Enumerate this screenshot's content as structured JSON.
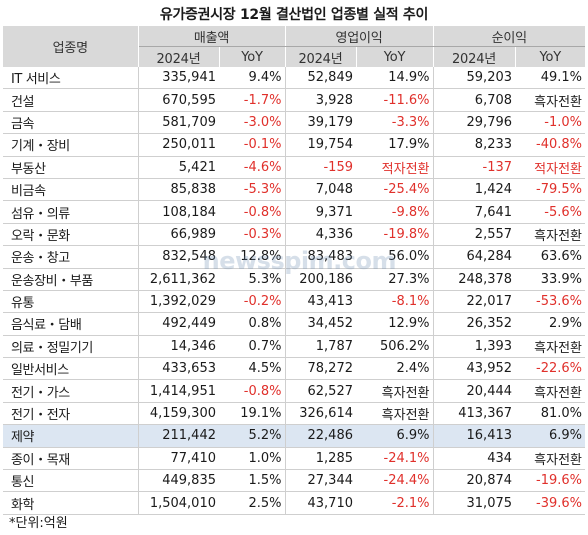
{
  "title": "유가증권시장 12월 결산법인 업종별 실적 추이",
  "header": {
    "sector_label": "업종명",
    "groups": [
      "매출액",
      "영업이익",
      "순이익"
    ],
    "year_label": "2024년",
    "yoy_label": "YoY"
  },
  "rows": [
    {
      "name": "IT 서비스",
      "rev": "335,941",
      "rev_yoy": "9.4%",
      "op": "52,849",
      "op_yoy": "14.9%",
      "net": "59,203",
      "net_yoy": "49.1%"
    },
    {
      "name": "건설",
      "rev": "670,595",
      "rev_yoy": "-1.7%",
      "op": "3,928",
      "op_yoy": "-11.6%",
      "net": "6,708",
      "net_yoy": "흑자전환"
    },
    {
      "name": "금속",
      "rev": "581,709",
      "rev_yoy": "-3.0%",
      "op": "39,179",
      "op_yoy": "-3.3%",
      "net": "29,796",
      "net_yoy": "-1.0%"
    },
    {
      "name": "기계・장비",
      "rev": "250,011",
      "rev_yoy": "-0.1%",
      "op": "19,754",
      "op_yoy": "17.9%",
      "net": "8,233",
      "net_yoy": "-40.8%"
    },
    {
      "name": "부동산",
      "rev": "5,421",
      "rev_yoy": "-4.6%",
      "op": "-159",
      "op_yoy": "적자전환",
      "net": "-137",
      "net_yoy": "적자전환"
    },
    {
      "name": "비금속",
      "rev": "85,838",
      "rev_yoy": "-5.3%",
      "op": "7,048",
      "op_yoy": "-25.4%",
      "net": "1,424",
      "net_yoy": "-79.5%"
    },
    {
      "name": "섬유・의류",
      "rev": "108,184",
      "rev_yoy": "-0.8%",
      "op": "9,371",
      "op_yoy": "-9.8%",
      "net": "7,641",
      "net_yoy": "-5.6%"
    },
    {
      "name": "오락・문화",
      "rev": "66,989",
      "rev_yoy": "-0.3%",
      "op": "4,336",
      "op_yoy": "-19.8%",
      "net": "2,557",
      "net_yoy": "흑자전환"
    },
    {
      "name": "운송・창고",
      "rev": "832,548",
      "rev_yoy": "12.8%",
      "op": "83,483",
      "op_yoy": "56.0%",
      "net": "64,284",
      "net_yoy": "63.6%"
    },
    {
      "name": "운송장비・부품",
      "rev": "2,611,362",
      "rev_yoy": "5.3%",
      "op": "200,186",
      "op_yoy": "27.3%",
      "net": "248,378",
      "net_yoy": "33.9%"
    },
    {
      "name": "유통",
      "rev": "1,392,029",
      "rev_yoy": "-0.2%",
      "op": "43,413",
      "op_yoy": "-8.1%",
      "net": "22,017",
      "net_yoy": "-53.6%"
    },
    {
      "name": "음식료・담배",
      "rev": "492,449",
      "rev_yoy": "0.8%",
      "op": "34,452",
      "op_yoy": "12.9%",
      "net": "26,352",
      "net_yoy": "2.9%"
    },
    {
      "name": "의료・정밀기기",
      "rev": "14,346",
      "rev_yoy": "0.7%",
      "op": "1,787",
      "op_yoy": "506.2%",
      "net": "1,393",
      "net_yoy": "흑자전환"
    },
    {
      "name": "일반서비스",
      "rev": "433,653",
      "rev_yoy": "4.5%",
      "op": "78,272",
      "op_yoy": "2.4%",
      "net": "43,952",
      "net_yoy": "-22.6%"
    },
    {
      "name": "전기・가스",
      "rev": "1,414,951",
      "rev_yoy": "-0.8%",
      "op": "62,527",
      "op_yoy": "흑자전환",
      "net": "20,444",
      "net_yoy": "흑자전환"
    },
    {
      "name": "전기・전자",
      "rev": "4,159,300",
      "rev_yoy": "19.1%",
      "op": "326,614",
      "op_yoy": "흑자전환",
      "net": "413,367",
      "net_yoy": "81.0%"
    },
    {
      "name": "제약",
      "rev": "211,442",
      "rev_yoy": "5.2%",
      "op": "22,486",
      "op_yoy": "6.9%",
      "net": "16,413",
      "net_yoy": "6.9%",
      "highlight": true
    },
    {
      "name": "종이・목재",
      "rev": "77,410",
      "rev_yoy": "1.0%",
      "op": "1,285",
      "op_yoy": "-24.1%",
      "net": "434",
      "net_yoy": "흑자전환"
    },
    {
      "name": "통신",
      "rev": "449,835",
      "rev_yoy": "1.5%",
      "op": "27,344",
      "op_yoy": "-24.4%",
      "net": "20,874",
      "net_yoy": "-19.6%"
    },
    {
      "name": "화학",
      "rev": "1,504,010",
      "rev_yoy": "2.5%",
      "op": "43,710",
      "op_yoy": "-2.1%",
      "net": "31,075",
      "net_yoy": "-39.6%"
    }
  ],
  "footnote": "*단위:억원",
  "watermark": "newsspim.com",
  "colors": {
    "negative": "#e0302b",
    "header_bg": "#d9d9d9",
    "highlight_bg": "#dce6f2"
  }
}
